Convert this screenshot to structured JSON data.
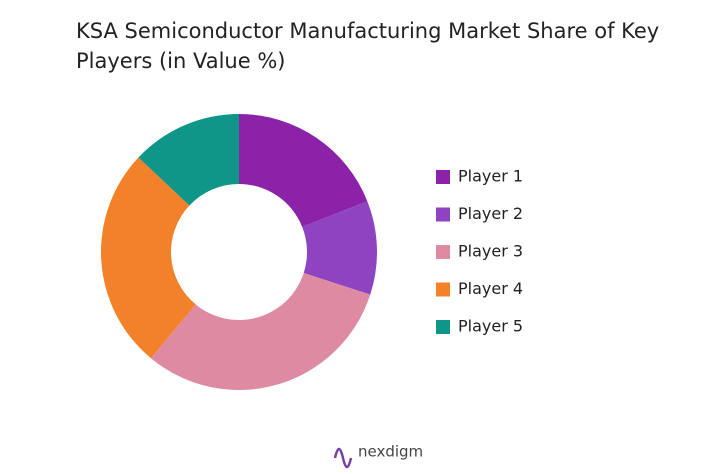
{
  "chart_data": {
    "type": "donut",
    "title": "KSA Semiconductor Manufacturing Market Share of Key Players (in Value %)",
    "categories": [
      "Player 1",
      "Player 2",
      "Player 3",
      "Player 4",
      "Player 5"
    ],
    "values": [
      19,
      11,
      31,
      26,
      13
    ],
    "colors": [
      "#8b22a8",
      "#8e44c0",
      "#df8aa3",
      "#f2812a",
      "#0f9688"
    ],
    "brand": "nexdigm"
  }
}
